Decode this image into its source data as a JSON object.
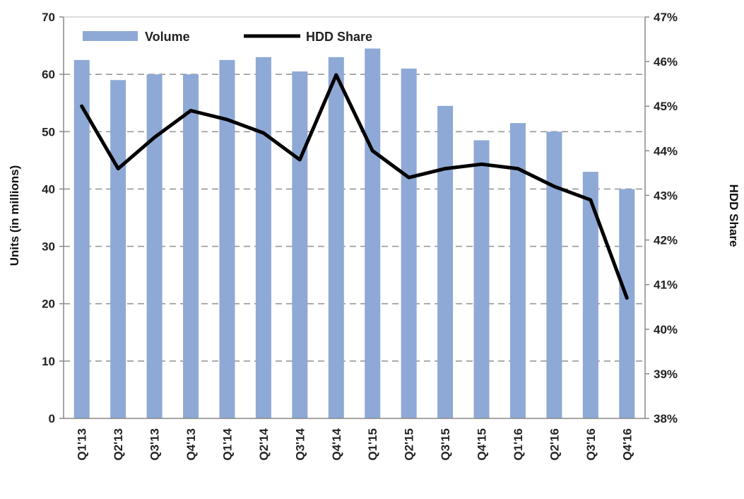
{
  "chart_data": {
    "type": "bar",
    "categories": [
      "Q1'13",
      "Q2'13",
      "Q3'13",
      "Q4'13",
      "Q1'14",
      "Q2'14",
      "Q3'14",
      "Q4'14",
      "Q1'15",
      "Q2'15",
      "Q3'15",
      "Q4'15",
      "Q1'16",
      "Q2'16",
      "Q3'16",
      "Q4'16"
    ],
    "series": [
      {
        "name": "Volume",
        "type": "bar",
        "axis": "left",
        "values": [
          62.5,
          59.0,
          60.0,
          60.0,
          62.5,
          63.0,
          60.5,
          63.0,
          64.5,
          61.0,
          54.5,
          48.5,
          51.5,
          50.0,
          43.0,
          40.0
        ]
      },
      {
        "name": "HDD Share",
        "type": "line",
        "axis": "right",
        "values": [
          45.0,
          43.6,
          44.3,
          44.9,
          44.7,
          44.4,
          43.8,
          45.7,
          44.0,
          43.4,
          43.6,
          43.7,
          43.6,
          43.2,
          42.9,
          40.7
        ]
      }
    ],
    "title": "",
    "xlabel": "",
    "ylabel": "Units (in millions)",
    "y2label": "HDD Share",
    "ylim": [
      0,
      70
    ],
    "y2lim": [
      38,
      47
    ],
    "yticks": [
      "0",
      "10",
      "20",
      "30",
      "40",
      "50",
      "60",
      "70"
    ],
    "y2ticks": [
      "38%",
      "39%",
      "40%",
      "41%",
      "42%",
      "43%",
      "44%",
      "45%",
      "46%",
      "47%"
    ],
    "grid": true,
    "legend": "top-left",
    "colors": {
      "bar": "#8ea9d6",
      "line": "#000000",
      "grid": "#999999"
    }
  }
}
